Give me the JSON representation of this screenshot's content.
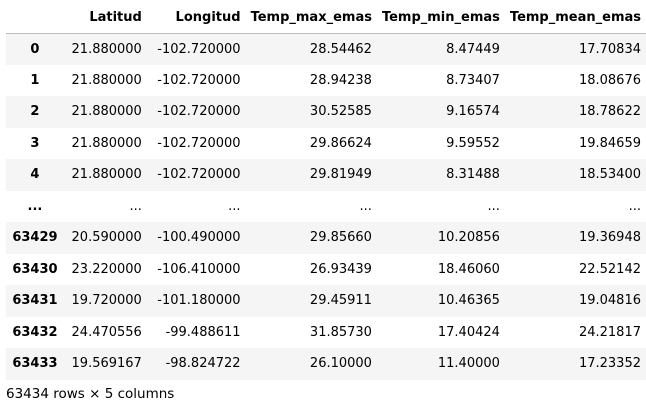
{
  "table": {
    "columns": [
      "",
      "Latitud",
      "Longitud",
      "Temp_max_emas",
      "Temp_min_emas",
      "Temp_mean_emas"
    ],
    "rows": [
      [
        "0",
        "21.880000",
        "-102.720000",
        "28.54462",
        "8.47449",
        "17.70834"
      ],
      [
        "1",
        "21.880000",
        "-102.720000",
        "28.94238",
        "8.73407",
        "18.08676"
      ],
      [
        "2",
        "21.880000",
        "-102.720000",
        "30.52585",
        "9.16574",
        "18.78622"
      ],
      [
        "3",
        "21.880000",
        "-102.720000",
        "29.86624",
        "9.59552",
        "19.84659"
      ],
      [
        "4",
        "21.880000",
        "-102.720000",
        "29.81949",
        "8.31488",
        "18.53400"
      ],
      [
        "...",
        "...",
        "...",
        "...",
        "...",
        "..."
      ],
      [
        "63429",
        "20.590000",
        "-100.490000",
        "29.85660",
        "10.20856",
        "19.36948"
      ],
      [
        "63430",
        "23.220000",
        "-106.410000",
        "26.93439",
        "18.46060",
        "22.52142"
      ],
      [
        "63431",
        "19.720000",
        "-101.180000",
        "29.45911",
        "10.46365",
        "19.04816"
      ],
      [
        "63432",
        "24.470556",
        "-99.488611",
        "31.85730",
        "17.40424",
        "24.21817"
      ],
      [
        "63433",
        "19.569167",
        "-98.824722",
        "26.10000",
        "11.40000",
        "17.23352"
      ]
    ]
  },
  "footer": {
    "summary": "63434 rows × 5 columns"
  }
}
